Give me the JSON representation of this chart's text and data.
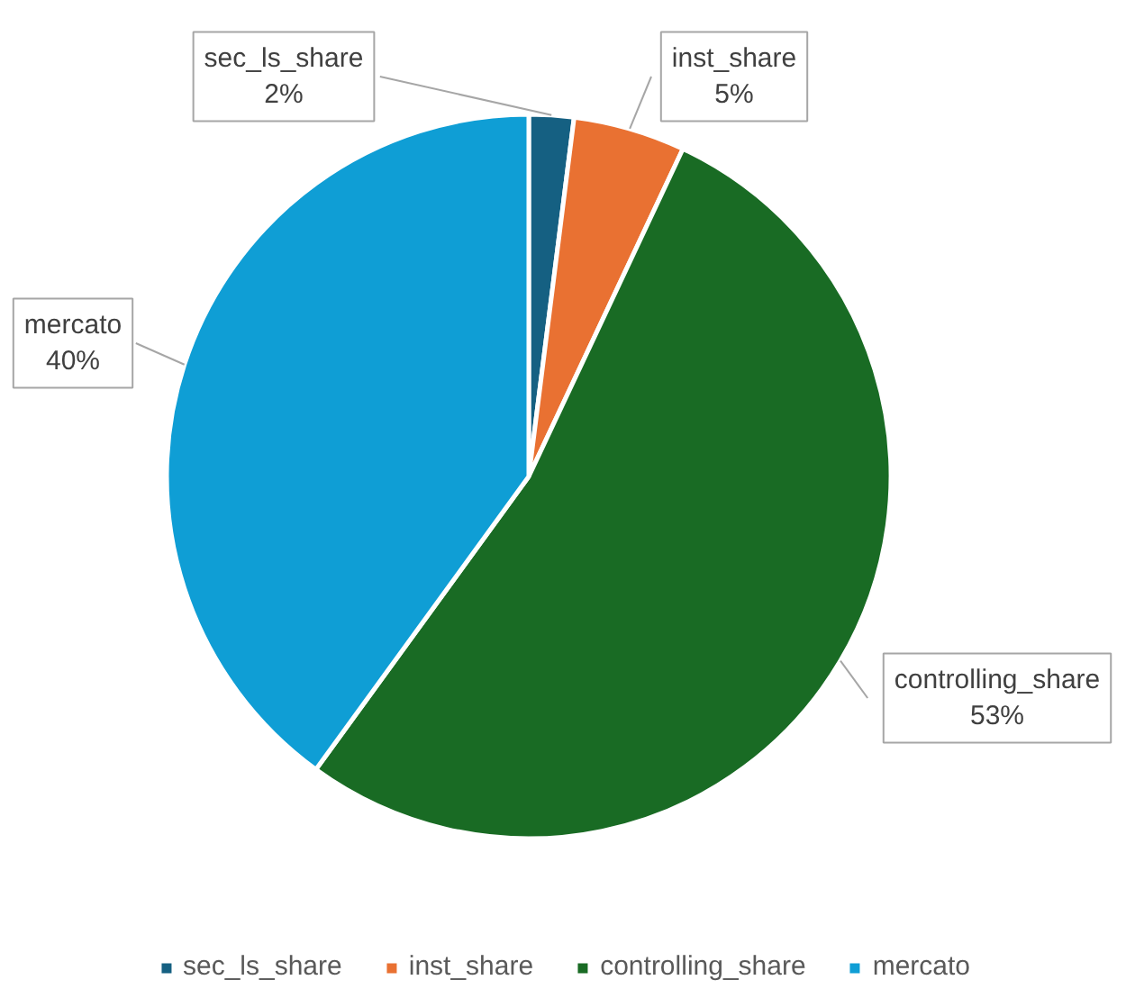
{
  "chart_data": {
    "type": "pie",
    "categories": [
      "sec_ls_share",
      "inst_share",
      "controlling_share",
      "mercato"
    ],
    "values": [
      2,
      5,
      53,
      40
    ],
    "colors": [
      "#156082",
      "#e97132",
      "#196b24",
      "#0f9ed5"
    ],
    "value_labels": [
      "2%",
      "5%",
      "53%",
      "40%"
    ],
    "legend": "bottom"
  }
}
